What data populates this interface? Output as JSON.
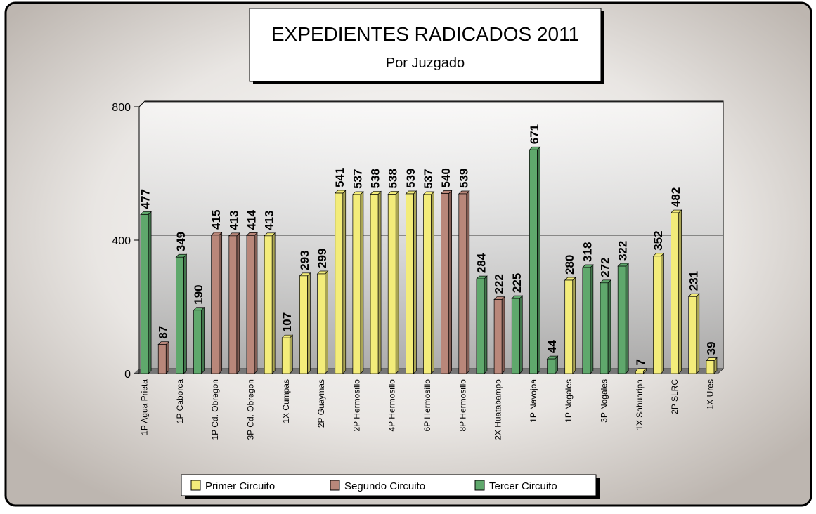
{
  "chart_data": {
    "type": "bar",
    "title": "EXPEDIENTES RADICADOS 2011",
    "subtitle": "Por Juzgado",
    "categories": [
      "1P Agua Prieta",
      null,
      "1P Caborca",
      null,
      "1P Cd. Obregon",
      null,
      "3P Cd. Obregon",
      null,
      "1X Cumpas",
      null,
      "2P Guaymas",
      null,
      "2P Hermosillo",
      null,
      "4P Hermosillo",
      null,
      "6P Hermosillo",
      null,
      "8P Hermosillo",
      null,
      "2X Huatabampo",
      null,
      "1P Navojoa",
      null,
      "1P Nogales",
      null,
      "3P Nogales",
      null,
      "1X Sahuaripa",
      null,
      "2P SLRC",
      null,
      "1X Ures"
    ],
    "series": [
      {
        "name": "Primer Circuito",
        "color": "#f3ec7a",
        "values": [
          null,
          null,
          null,
          null,
          null,
          null,
          null,
          413,
          107,
          293,
          299,
          541,
          537,
          538,
          538,
          539,
          537,
          null,
          null,
          null,
          null,
          null,
          null,
          null,
          280,
          null,
          null,
          null,
          7,
          352,
          482,
          231,
          39
        ]
      },
      {
        "name": "Segundo Circuito",
        "color": "#b9877a",
        "values": [
          null,
          87,
          null,
          null,
          415,
          413,
          414,
          null,
          null,
          null,
          null,
          null,
          null,
          null,
          null,
          null,
          null,
          540,
          539,
          null,
          222,
          null,
          null,
          null,
          null,
          null,
          null,
          null,
          null,
          null,
          null,
          null,
          null
        ]
      },
      {
        "name": "Tercer Circuito",
        "color": "#5fa86c",
        "values": [
          477,
          null,
          349,
          190,
          null,
          null,
          null,
          null,
          null,
          null,
          null,
          null,
          null,
          null,
          null,
          null,
          null,
          null,
          null,
          284,
          null,
          225,
          671,
          44,
          null,
          318,
          272,
          322,
          null,
          null,
          null,
          null,
          null
        ]
      }
    ],
    "ylim": [
      0,
      800
    ],
    "yticks": [
      0,
      400,
      800
    ],
    "grid": true
  }
}
